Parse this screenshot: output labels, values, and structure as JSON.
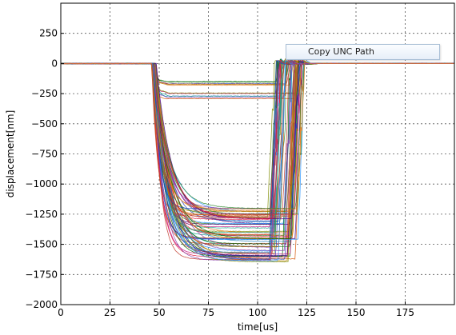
{
  "chart_data": {
    "type": "line",
    "title": "",
    "xlabel": "time[us]",
    "ylabel": "displacement[nm]",
    "xlim": [
      0,
      200
    ],
    "ylim": [
      -2000,
      500
    ],
    "xticks": [
      0,
      25,
      50,
      75,
      100,
      125,
      150,
      175
    ],
    "yticks": [
      250,
      0,
      -250,
      -500,
      -750,
      -1000,
      -1250,
      -1500,
      -1750,
      -2000
    ],
    "grid": true,
    "legend": "none",
    "series_count_estimate": 80,
    "groups": [
      {
        "description": "small-displacement cluster",
        "x": [
          0,
          47,
          50,
          52,
          55,
          60,
          105,
          107,
          110,
          115,
          120,
          125,
          200
        ],
        "y_range_plateau": [
          -300,
          -150
        ],
        "typical_y": [
          0,
          0,
          -220,
          -260,
          -240,
          -235,
          -235,
          -180,
          40,
          10,
          0,
          0,
          0
        ]
      },
      {
        "description": "large-displacement cluster",
        "x": [
          0,
          46,
          48,
          50,
          55,
          60,
          65,
          70,
          105,
          108,
          112,
          118,
          125,
          200
        ],
        "y_range_plateau": [
          -1650,
          -1200
        ],
        "typical_y": [
          0,
          0,
          -300,
          -700,
          -1050,
          -1250,
          -1380,
          -1420,
          -1420,
          -1100,
          -300,
          0,
          0,
          0
        ]
      }
    ],
    "colors": [
      "#1f3fbf",
      "#2e8b2e",
      "#c0392b",
      "#8e44ad",
      "#e67e22",
      "#16a085",
      "#d35400",
      "#2980b9",
      "#c71585",
      "#7f8c00",
      "#b8860b",
      "#006400",
      "#4b0082",
      "#dc143c",
      "#1e90ff"
    ]
  },
  "tooltip": {
    "text": "Copy UNC Path"
  }
}
